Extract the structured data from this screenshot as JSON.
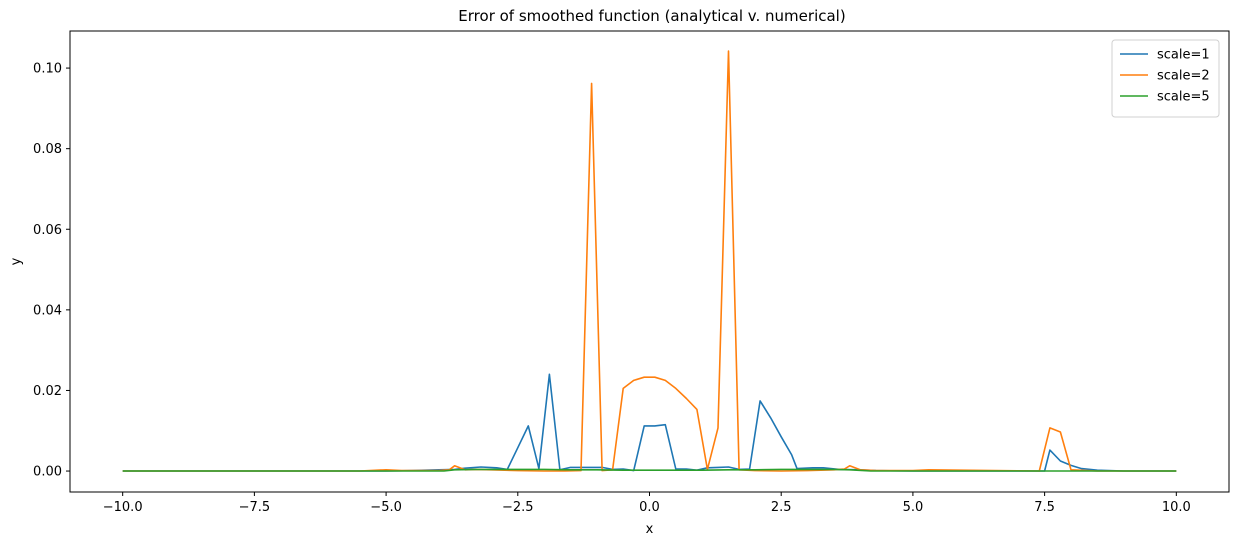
{
  "chart_data": {
    "type": "line",
    "title": "Error of smoothed function (analytical v. numerical)",
    "xlabel": "x",
    "ylabel": "y",
    "xlim": [
      -11.0,
      11.0
    ],
    "ylim": [
      -0.0052,
      0.1092
    ],
    "xticks": [
      -10.0,
      -7.5,
      -5.0,
      -2.5,
      0.0,
      2.5,
      5.0,
      7.5,
      10.0
    ],
    "xtick_labels": [
      "−10.0",
      "−7.5",
      "−5.0",
      "−2.5",
      "0.0",
      "2.5",
      "5.0",
      "7.5",
      "10.0"
    ],
    "yticks": [
      0.0,
      0.02,
      0.04,
      0.06,
      0.08,
      0.1
    ],
    "ytick_labels": [
      "0.00",
      "0.02",
      "0.04",
      "0.06",
      "0.08",
      "0.10"
    ],
    "grid": false,
    "legend_position": "top-right",
    "series": [
      {
        "name": "scale=1",
        "color": "#1f77b4",
        "points": [
          [
            -10.0,
            0.0
          ],
          [
            -5.0,
            0.0
          ],
          [
            -4.5,
            0.0001
          ],
          [
            -4.0,
            0.0003
          ],
          [
            -3.7,
            0.0004
          ],
          [
            -3.5,
            0.0007
          ],
          [
            -3.2,
            0.001
          ],
          [
            -2.9,
            0.0008
          ],
          [
            -2.7,
            0.0004
          ],
          [
            -2.5,
            0.0058
          ],
          [
            -2.3,
            0.0112
          ],
          [
            -2.1,
            0.0006
          ],
          [
            -1.9,
            0.024
          ],
          [
            -1.7,
            0.0003
          ],
          [
            -1.5,
            0.0009
          ],
          [
            -1.3,
            0.0009
          ],
          [
            -1.1,
            0.0009
          ],
          [
            -0.9,
            0.0009
          ],
          [
            -0.7,
            0.0004
          ],
          [
            -0.5,
            0.0005
          ],
          [
            -0.3,
            0.0001
          ],
          [
            -0.1,
            0.0112
          ],
          [
            0.1,
            0.0112
          ],
          [
            0.3,
            0.0115
          ],
          [
            0.5,
            0.0005
          ],
          [
            0.7,
            0.0005
          ],
          [
            0.9,
            0.0002
          ],
          [
            1.1,
            0.0008
          ],
          [
            1.3,
            0.0009
          ],
          [
            1.5,
            0.001
          ],
          [
            1.7,
            0.0004
          ],
          [
            1.9,
            0.0005
          ],
          [
            2.1,
            0.0174
          ],
          [
            2.3,
            0.0132
          ],
          [
            2.5,
            0.0085
          ],
          [
            2.7,
            0.004
          ],
          [
            2.8,
            0.0006
          ],
          [
            3.1,
            0.0008
          ],
          [
            3.3,
            0.0008
          ],
          [
            3.6,
            0.0004
          ],
          [
            4.0,
            0.0003
          ],
          [
            4.3,
            0.0001
          ],
          [
            5.0,
            0.0
          ],
          [
            7.3,
            0.0
          ],
          [
            7.5,
            0.0
          ],
          [
            7.6,
            0.0052
          ],
          [
            7.8,
            0.0025
          ],
          [
            8.0,
            0.0014
          ],
          [
            8.2,
            0.0006
          ],
          [
            8.5,
            0.0002
          ],
          [
            9.0,
            0.0
          ],
          [
            10.0,
            0.0
          ]
        ]
      },
      {
        "name": "scale=2",
        "color": "#ff7f0e",
        "points": [
          [
            -10.0,
            0.0
          ],
          [
            -5.5,
            0.0
          ],
          [
            -5.0,
            0.0003
          ],
          [
            -4.7,
            0.0001
          ],
          [
            -4.0,
            0.0001
          ],
          [
            -3.8,
            0.0003
          ],
          [
            -3.7,
            0.0013
          ],
          [
            -3.5,
            0.0003
          ],
          [
            -3.3,
            0.0004
          ],
          [
            -3.0,
            0.0003
          ],
          [
            -2.5,
            0.0001
          ],
          [
            -2.0,
            0.0
          ],
          [
            -1.6,
            0.0
          ],
          [
            -1.3,
            0.0001
          ],
          [
            -1.1,
            0.0962
          ],
          [
            -0.9,
            0.0001
          ],
          [
            -0.7,
            0.0003
          ],
          [
            -0.5,
            0.0205
          ],
          [
            -0.3,
            0.0225
          ],
          [
            -0.1,
            0.0233
          ],
          [
            0.1,
            0.0233
          ],
          [
            0.3,
            0.0225
          ],
          [
            0.5,
            0.0205
          ],
          [
            0.7,
            0.018
          ],
          [
            0.9,
            0.0153
          ],
          [
            1.1,
            0.0004
          ],
          [
            1.3,
            0.0107
          ],
          [
            1.5,
            0.1042
          ],
          [
            1.7,
            0.0003
          ],
          [
            2.0,
            0.0001
          ],
          [
            2.5,
            0.0
          ],
          [
            3.0,
            0.0001
          ],
          [
            3.5,
            0.0003
          ],
          [
            3.7,
            0.0005
          ],
          [
            3.8,
            0.0013
          ],
          [
            4.0,
            0.0003
          ],
          [
            4.3,
            0.0001
          ],
          [
            5.0,
            0.0001
          ],
          [
            5.3,
            0.0003
          ],
          [
            7.4,
            0.0
          ],
          [
            7.6,
            0.0107
          ],
          [
            7.8,
            0.0097
          ],
          [
            8.0,
            0.0003
          ],
          [
            8.5,
            0.0
          ],
          [
            10.0,
            0.0
          ]
        ]
      },
      {
        "name": "scale=5",
        "color": "#2ca02c",
        "points": [
          [
            -10.0,
            0.0
          ],
          [
            -5.0,
            0.0
          ],
          [
            -4.2,
            0.0
          ],
          [
            -3.9,
            0.0
          ],
          [
            -3.7,
            0.0003
          ],
          [
            -3.3,
            0.0004
          ],
          [
            -2.9,
            0.0004
          ],
          [
            -2.5,
            0.0004
          ],
          [
            -2.0,
            0.0004
          ],
          [
            -1.5,
            0.0003
          ],
          [
            -1.0,
            0.0003
          ],
          [
            -0.5,
            0.0002
          ],
          [
            0.0,
            0.0002
          ],
          [
            0.5,
            0.0002
          ],
          [
            1.0,
            0.0002
          ],
          [
            1.5,
            0.0003
          ],
          [
            2.0,
            0.0003
          ],
          [
            2.5,
            0.0004
          ],
          [
            3.0,
            0.0004
          ],
          [
            3.5,
            0.0004
          ],
          [
            3.8,
            0.0003
          ],
          [
            4.2,
            0.0
          ],
          [
            5.0,
            0.0
          ],
          [
            10.0,
            0.0
          ]
        ]
      }
    ]
  }
}
